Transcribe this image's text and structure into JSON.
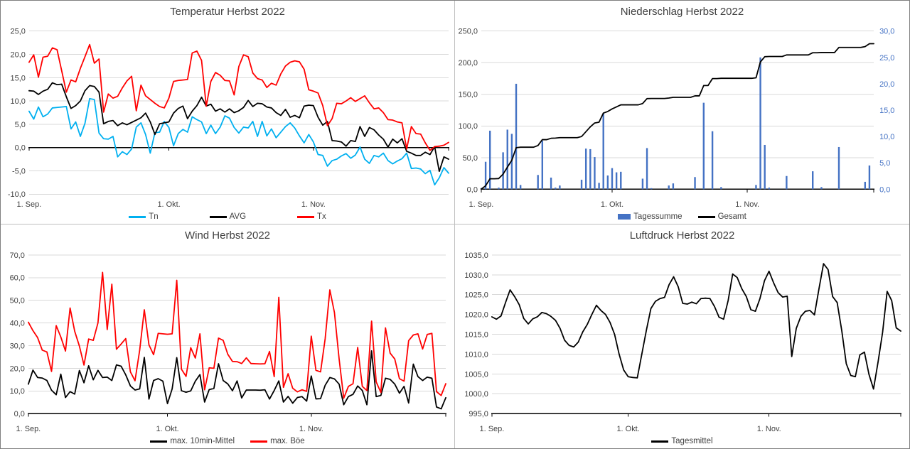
{
  "page": {
    "background": "#FFFFFF",
    "outer_border_color": "#7F7F7F",
    "divider_color": "#BFBFBF",
    "text_color": "#404040",
    "gridline_color": "#D9D9D9"
  },
  "chart_data": [
    {
      "id": "temperature",
      "type": "line",
      "title": "Temperatur Herbst 2022",
      "x_axis": {
        "tick_labels": [
          "1. Sep.",
          "1. Okt.",
          "1. Nov."
        ],
        "tick_indices": [
          0,
          30,
          61
        ],
        "n_points": 91
      },
      "y_axis": {
        "min": -10,
        "max": 25,
        "step": 5,
        "axis_at_value": 0,
        "tick_labels": [
          "25,0",
          "20,0",
          "15,0",
          "10,0",
          "5,0",
          "0,0",
          "-5,0",
          "-10,0"
        ]
      },
      "grid": true,
      "legend_position": "bottom",
      "series": [
        {
          "name": "Tn",
          "type": "line",
          "color": "#00B0F0",
          "values": [
            7.8,
            6.1,
            8.7,
            6.6,
            7.2,
            8.5,
            8.6,
            8.7,
            8.8,
            4.0,
            5.5,
            2.4,
            5.2,
            10.5,
            10.3,
            3.1,
            1.9,
            1.8,
            2.4,
            -2.0,
            -0.9,
            -1.5,
            -0.3,
            4.4,
            5.3,
            2.8,
            -1.2,
            3.2,
            3.3,
            5.6,
            4.3,
            0.4,
            3.0,
            3.9,
            3.3,
            6.6,
            6.0,
            5.5,
            3.0,
            4.8,
            3.0,
            4.4,
            6.8,
            6.3,
            4.3,
            3.1,
            4.4,
            4.2,
            5.6,
            2.4,
            5.6,
            2.5,
            4.0,
            2.1,
            3.3,
            4.5,
            5.3,
            4.2,
            2.5,
            1.0,
            2.8,
            1.2,
            -1.5,
            -1.7,
            -4.0,
            -2.8,
            -2.5,
            -1.8,
            -1.3,
            -2.3,
            -1.6,
            0.1,
            -2.5,
            -3.4,
            -1.7,
            -2.0,
            -1.2,
            -2.8,
            -3.5,
            -2.9,
            -2.4,
            -1.2,
            -4.5,
            -4.4,
            -4.6,
            -5.6,
            -4.9,
            -8.0,
            -6.5,
            -4.3,
            -5.5
          ]
        },
        {
          "name": "AVG",
          "type": "line",
          "color": "#000000",
          "values": [
            12.2,
            12.1,
            11.4,
            12.1,
            12.5,
            13.9,
            13.5,
            13.6,
            10.9,
            8.4,
            9.0,
            10.0,
            12.2,
            13.3,
            13.1,
            11.9,
            5.1,
            5.6,
            5.8,
            4.7,
            5.3,
            4.9,
            5.4,
            5.9,
            6.4,
            7.4,
            5.5,
            2.8,
            5.1,
            5.3,
            5.5,
            7.4,
            8.4,
            8.9,
            6.2,
            7.8,
            9.0,
            10.8,
            8.9,
            9.3,
            7.8,
            8.3,
            7.6,
            8.3,
            7.5,
            7.9,
            8.6,
            10.1,
            8.8,
            9.5,
            9.4,
            8.7,
            8.5,
            7.5,
            6.9,
            8.2,
            6.5,
            6.9,
            6.4,
            8.9,
            9.1,
            9.0,
            6.5,
            4.8,
            5.6,
            1.5,
            1.4,
            1.2,
            0.3,
            1.5,
            1.3,
            4.5,
            2.4,
            4.3,
            3.8,
            2.7,
            1.8,
            0.1,
            1.8,
            1.0,
            1.9,
            -0.8,
            -1.2,
            -1.7,
            -1.7,
            -1.0,
            -1.5,
            0.2,
            -5.1,
            -2.0,
            -2.5
          ]
        },
        {
          "name": "Tx",
          "type": "line",
          "color": "#FF0000",
          "values": [
            18.3,
            19.9,
            15.1,
            19.4,
            19.6,
            21.4,
            21.0,
            16.5,
            11.9,
            14.5,
            14.1,
            17.0,
            19.5,
            22.1,
            18.1,
            19.0,
            7.6,
            11.5,
            10.6,
            11.0,
            12.8,
            14.3,
            15.3,
            7.9,
            13.4,
            11.1,
            10.3,
            9.5,
            8.8,
            8.5,
            10.6,
            14.2,
            14.4,
            14.5,
            14.6,
            20.3,
            20.7,
            18.7,
            8.9,
            14.2,
            16.1,
            15.5,
            14.4,
            14.3,
            11.3,
            17.4,
            19.9,
            19.5,
            16.0,
            14.8,
            14.5,
            12.9,
            13.8,
            13.4,
            15.8,
            17.5,
            18.3,
            18.6,
            18.4,
            16.8,
            12.4,
            12.1,
            11.7,
            9.0,
            4.7,
            6.2,
            9.5,
            9.4,
            10.0,
            10.7,
            9.9,
            10.5,
            11.1,
            9.6,
            8.3,
            8.5,
            7.5,
            6.0,
            5.9,
            5.5,
            5.3,
            -0.3,
            4.5,
            3.0,
            2.9,
            1.0,
            -0.6,
            0.2,
            0.3,
            0.5,
            1.1
          ]
        }
      ]
    },
    {
      "id": "precipitation",
      "type": "bar+line",
      "title": "Niederschlag Herbst 2022",
      "x_axis": {
        "tick_labels": [
          "1. Sep.",
          "1. Okt.",
          "1. Nov."
        ],
        "tick_indices": [
          0,
          30,
          61
        ],
        "n_points": 91
      },
      "y_axis": {
        "min": 0,
        "max": 250,
        "step": 50,
        "tick_labels": [
          "250,0",
          "200,0",
          "150,0",
          "100,0",
          "50,0",
          "0,0"
        ]
      },
      "y_axis_right": {
        "min": 0,
        "max": 30,
        "step": 5,
        "color": "#4472C4",
        "tick_labels": [
          "30,0",
          "25,0",
          "20,0",
          "15,0",
          "10,0",
          "5,0",
          "0,0"
        ]
      },
      "grid": true,
      "legend_position": "bottom",
      "series": [
        {
          "name": "Tagessumme",
          "type": "bar",
          "axis": "right",
          "color": "#4472C4",
          "values": [
            0.2,
            5.2,
            11.1,
            0,
            0.3,
            7.0,
            11.3,
            10.5,
            20.0,
            0.8,
            0,
            0,
            0,
            2.7,
            9.2,
            0,
            2.2,
            0.3,
            0.7,
            0,
            0,
            0,
            0,
            1.8,
            7.7,
            7.6,
            6.1,
            1.2,
            14.4,
            2.6,
            4.0,
            3.2,
            3.3,
            0,
            0,
            0,
            0,
            2.0,
            7.8,
            0.2,
            0,
            0,
            0,
            0.7,
            1.1,
            0,
            0,
            0,
            0,
            2.3,
            0,
            16.4,
            0,
            11.0,
            0,
            0.4,
            0,
            0,
            0,
            0,
            0,
            0,
            0,
            0.8,
            25.0,
            8.4,
            0.3,
            0,
            0,
            0,
            2.5,
            0,
            0,
            0,
            0,
            0,
            3.4,
            0,
            0.4,
            0,
            0,
            0,
            8.0,
            0,
            0,
            0,
            0,
            0,
            1.4,
            4.5,
            0
          ]
        },
        {
          "name": "Gesamt",
          "type": "line",
          "axis": "left",
          "color": "#000000",
          "derived": "cumulative_of_series_0",
          "final_total": 230.0
        }
      ]
    },
    {
      "id": "wind",
      "type": "line",
      "title": "Wind Herbst 2022",
      "x_axis": {
        "tick_labels": [
          "1. Sep.",
          "1. Okt.",
          "1. Nov."
        ],
        "tick_indices": [
          0,
          30,
          61
        ],
        "n_points": 91
      },
      "y_axis": {
        "min": 0,
        "max": 70,
        "step": 10,
        "tick_labels": [
          "70,0",
          "60,0",
          "50,0",
          "40,0",
          "30,0",
          "20,0",
          "10,0",
          "0,0"
        ]
      },
      "grid": true,
      "legend_position": "bottom",
      "series": [
        {
          "name": "max. 10min-Mittel",
          "type": "line",
          "color": "#000000",
          "values": [
            13.0,
            19.2,
            15.9,
            15.7,
            14.6,
            10.3,
            8.3,
            17.4,
            7.1,
            9.7,
            8.6,
            19.0,
            13.6,
            21.1,
            14.9,
            19.1,
            15.9,
            16.1,
            14.6,
            21.5,
            20.9,
            17.1,
            12.2,
            10.4,
            10.9,
            24.8,
            6.4,
            14.6,
            15.4,
            14.3,
            4.4,
            10.9,
            24.7,
            10.1,
            9.4,
            10.0,
            14.3,
            17.2,
            5.1,
            10.6,
            11.1,
            22.0,
            14.6,
            13.1,
            10.1,
            14.4,
            6.9,
            10.4,
            10.4,
            10.4,
            10.3,
            10.5,
            6.4,
            10.2,
            14.4,
            5.1,
            7.6,
            4.6,
            7.1,
            7.5,
            5.5,
            16.6,
            6.5,
            6.6,
            12.5,
            15.9,
            15.3,
            13.0,
            3.9,
            7.5,
            8.5,
            12.2,
            10.2,
            3.9,
            27.7,
            7.5,
            8.0,
            15.6,
            15.1,
            13.0,
            9.0,
            12.0,
            4.7,
            21.8,
            16.3,
            14.6,
            16.1,
            15.6,
            2.9,
            2.1,
            7.0
          ]
        },
        {
          "name": "max. Böe",
          "type": "line",
          "color": "#FF0000",
          "values": [
            40.3,
            36.6,
            33.5,
            28.0,
            27.2,
            18.6,
            38.8,
            33.8,
            27.6,
            46.6,
            36.3,
            29.8,
            21.4,
            32.9,
            32.3,
            40.0,
            62.3,
            37.1,
            57.1,
            28.4,
            30.7,
            33.1,
            18.4,
            14.5,
            28.0,
            45.8,
            30.3,
            26.0,
            35.4,
            35.2,
            35.0,
            35.2,
            58.8,
            19.6,
            16.4,
            29.1,
            24.5,
            35.2,
            10.5,
            20.2,
            20.0,
            33.3,
            32.3,
            26.2,
            23.0,
            22.9,
            22.1,
            24.6,
            22.1,
            22.0,
            21.9,
            22.0,
            27.4,
            16.3,
            51.3,
            11.6,
            17.6,
            11.2,
            9.6,
            10.5,
            9.8,
            34.2,
            19.1,
            18.4,
            33.0,
            54.6,
            44.6,
            24.1,
            6.8,
            12.0,
            13.2,
            29.2,
            12.0,
            10.2,
            40.8,
            14.0,
            9.3,
            37.8,
            26.7,
            24.1,
            15.4,
            14.3,
            32.2,
            34.7,
            35.2,
            28.5,
            34.9,
            35.4,
            9.7,
            8.0,
            13.2
          ]
        }
      ]
    },
    {
      "id": "pressure",
      "type": "line",
      "title": "Luftdruck Herbst 2022",
      "x_axis": {
        "tick_labels": [
          "1. Sep.",
          "1. Okt.",
          "1. Nov."
        ],
        "tick_indices": [
          0,
          30,
          61
        ],
        "n_points": 91
      },
      "y_axis": {
        "min": 995,
        "max": 1035,
        "step": 5,
        "tick_labels": [
          "1035,0",
          "1030,0",
          "1025,0",
          "1020,0",
          "1015,0",
          "1010,0",
          "1005,0",
          "1000,0",
          "995,0"
        ]
      },
      "grid": true,
      "legend_position": "bottom",
      "series": [
        {
          "name": "Tagesmittel",
          "type": "line",
          "color": "#000000",
          "values": [
            1019.4,
            1018.8,
            1019.6,
            1023.0,
            1026.2,
            1024.5,
            1022.5,
            1019.0,
            1017.6,
            1018.9,
            1019.4,
            1020.5,
            1020.2,
            1019.5,
            1018.5,
            1016.5,
            1013.5,
            1012.2,
            1011.8,
            1013.0,
            1015.6,
            1017.5,
            1020.0,
            1022.3,
            1021.0,
            1020.0,
            1018.0,
            1015.0,
            1010.0,
            1006.0,
            1004.3,
            1004.1,
            1004.0,
            1010.0,
            1016.0,
            1021.5,
            1023.3,
            1024.0,
            1024.3,
            1027.5,
            1029.5,
            1027.0,
            1022.8,
            1022.6,
            1023.1,
            1022.7,
            1024.0,
            1024.1,
            1024.0,
            1022.0,
            1019.3,
            1018.8,
            1023.5,
            1030.2,
            1029.3,
            1026.5,
            1024.5,
            1021.2,
            1020.8,
            1024.0,
            1028.5,
            1030.9,
            1028.0,
            1025.5,
            1024.4,
            1024.6,
            1009.4,
            1016.5,
            1019.5,
            1020.8,
            1021.0,
            1019.9,
            1026.5,
            1032.8,
            1031.3,
            1024.5,
            1023.0,
            1016.0,
            1007.6,
            1004.6,
            1004.3,
            1009.8,
            1010.5,
            1004.9,
            1001.2,
            1008.0,
            1015.5,
            1025.8,
            1023.5,
            1016.6,
            1015.8
          ]
        }
      ]
    }
  ]
}
